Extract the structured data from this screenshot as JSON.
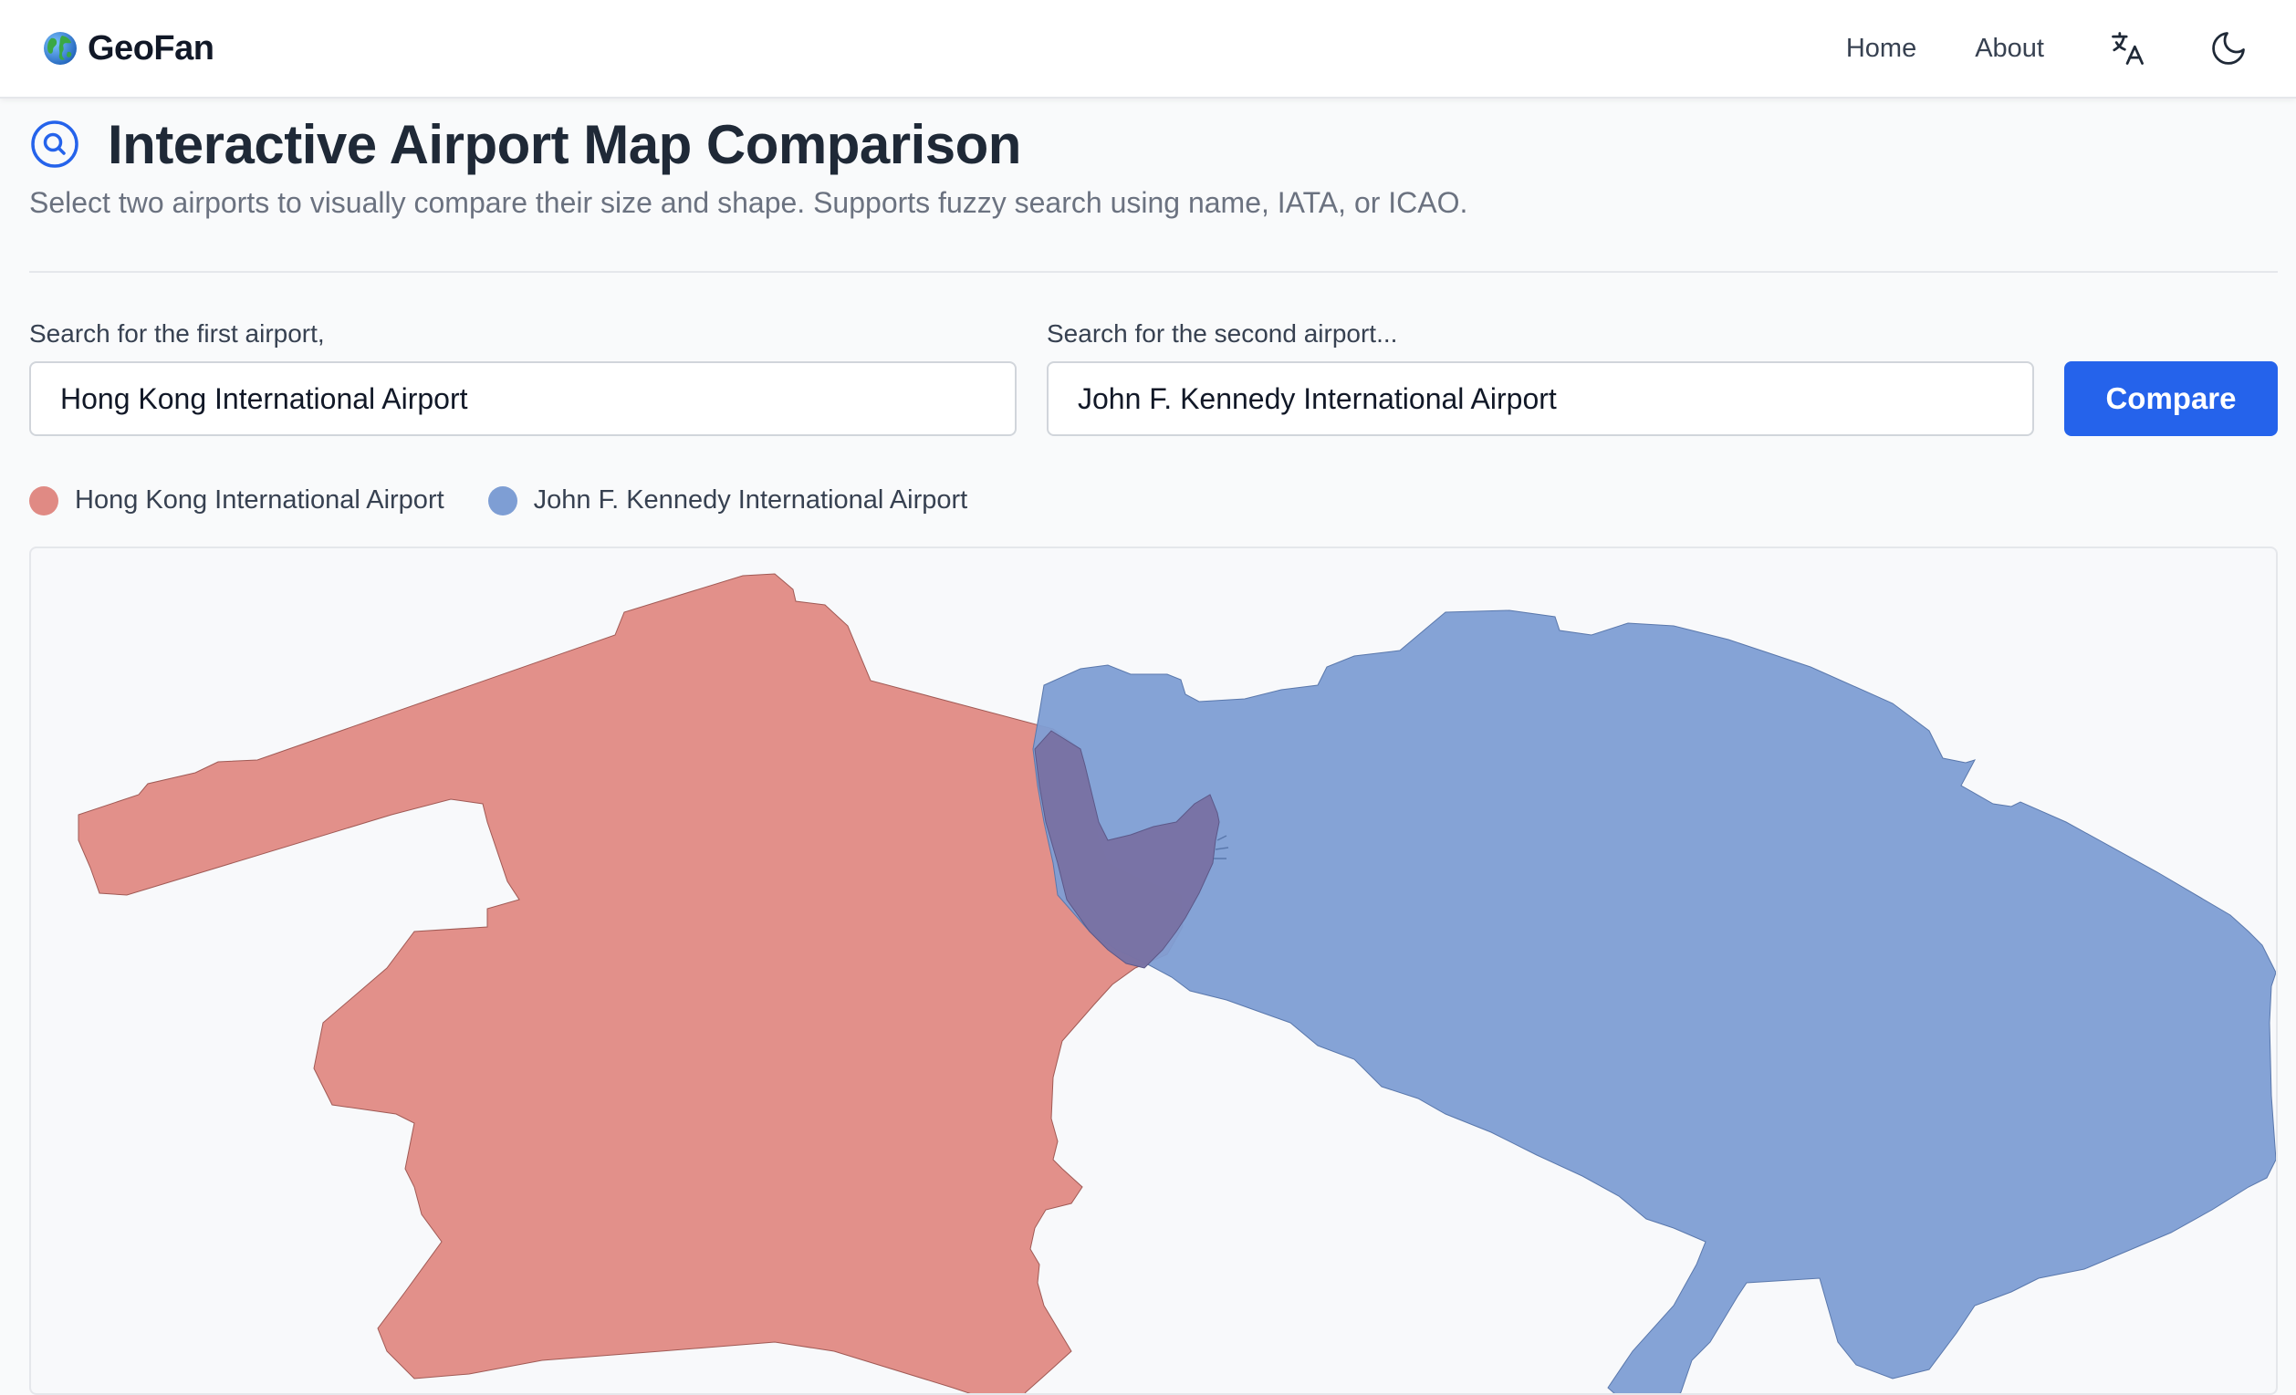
{
  "nav": {
    "brand": "GeoFan",
    "home_label": "Home",
    "about_label": "About"
  },
  "header": {
    "title": "Interactive Airport Map Comparison",
    "subtitle": "Select two airports to visually compare their size and shape. Supports fuzzy search using name, IATA, or ICAO."
  },
  "search": {
    "first_label": "Search for the first airport,",
    "first_value": "Hong Kong International Airport",
    "second_label": "Search for the second airport...",
    "second_value": "John F. Kennedy International Airport",
    "compare_label": "Compare"
  },
  "legend": [
    {
      "label": "Hong Kong International Airport",
      "color": "#e08a84"
    },
    {
      "label": "John F. Kennedy International Airport",
      "color": "#7e9ed4"
    }
  ],
  "colors": {
    "accent": "#2563eb",
    "airport_a_fill": "#e08a84",
    "airport_b_fill": "#7e9ed4"
  },
  "icons": {
    "brand": "globe-icon",
    "translate": "translate-icon",
    "theme": "moon-icon",
    "title": "search-circle-icon"
  }
}
